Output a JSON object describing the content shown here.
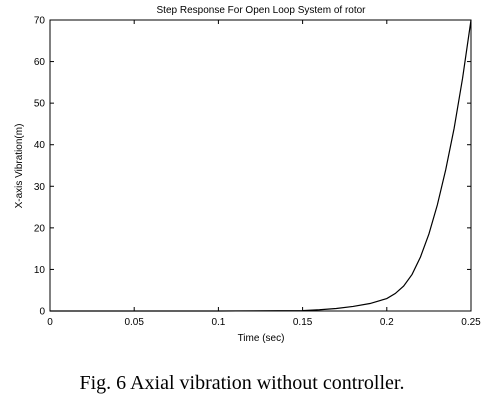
{
  "chart_data": {
    "type": "line",
    "title": "Step Response For Open Loop System  of rotor",
    "xlabel": "Time (sec)",
    "ylabel": "X-axis Vibration(m)",
    "xlim": [
      0,
      0.25
    ],
    "ylim": [
      0,
      70
    ],
    "xticks": [
      0,
      0.05,
      0.1,
      0.15,
      0.2,
      0.25
    ],
    "xtick_labels": [
      "0",
      "0.05",
      "0.1",
      "0.15",
      "0.2",
      "0.25"
    ],
    "yticks": [
      0,
      10,
      20,
      30,
      40,
      50,
      60,
      70
    ],
    "ytick_labels": [
      "0",
      "10",
      "20",
      "30",
      "40",
      "50",
      "60",
      "70"
    ],
    "grid": false,
    "series": [
      {
        "color": "#000000",
        "x": [
          0,
          0.05,
          0.1,
          0.15,
          0.16,
          0.17,
          0.18,
          0.19,
          0.2,
          0.205,
          0.21,
          0.215,
          0.22,
          0.225,
          0.23,
          0.235,
          0.24,
          0.245,
          0.25
        ],
        "y": [
          0,
          0,
          0,
          0.1,
          0.3,
          0.6,
          1.1,
          1.8,
          3.0,
          4.2,
          6.0,
          8.8,
          13.0,
          18.5,
          25.5,
          34.0,
          44.0,
          56.0,
          70.0
        ]
      }
    ]
  },
  "caption": "Fig. 6 Axial vibration without controller."
}
